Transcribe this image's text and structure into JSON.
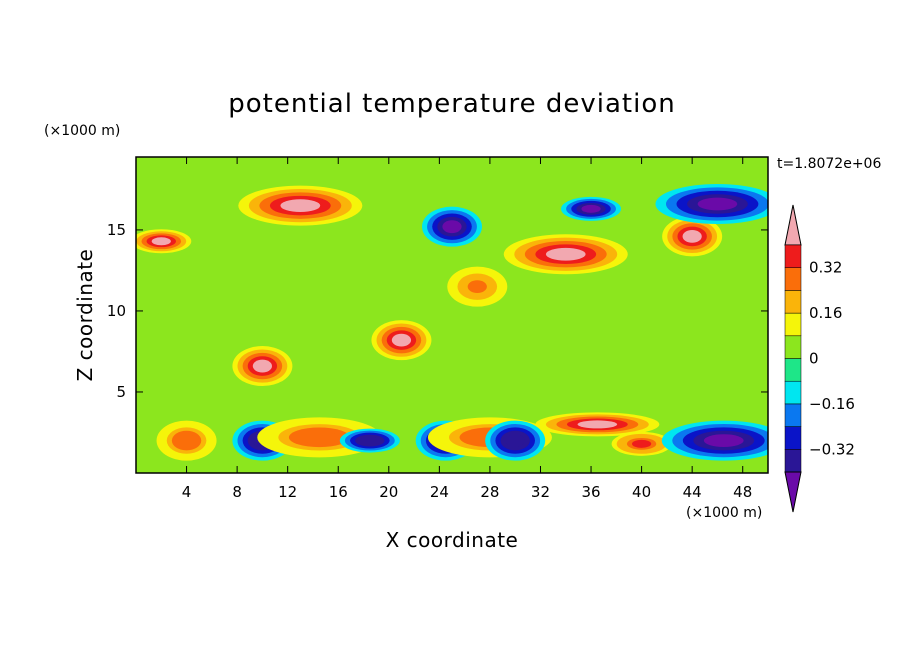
{
  "chart_data": {
    "type": "heatmap",
    "title": "potential temperature deviation",
    "xlabel": "X coordinate",
    "ylabel": "Z coordinate",
    "x_unit": "(×1000 m)",
    "z_unit": "(×1000 m)",
    "time_label": "t=1.8072e+06",
    "xlim": [
      0,
      50
    ],
    "zlim": [
      0,
      19.5
    ],
    "x_ticks": [
      4,
      8,
      12,
      16,
      20,
      24,
      28,
      32,
      36,
      40,
      44,
      48
    ],
    "z_ticks": [
      5,
      10,
      15
    ],
    "colorbar": {
      "levels": [
        -0.4,
        -0.32,
        -0.24,
        -0.16,
        -0.08,
        0,
        0.08,
        0.16,
        0.24,
        0.32,
        0.4
      ],
      "labels": [
        "0.32",
        "0.16",
        "0",
        "−0.16",
        "−0.32"
      ],
      "label_values": [
        0.32,
        0.16,
        0,
        -0.16,
        -0.32
      ],
      "colors": [
        "#6a0aa8",
        "#2a1696",
        "#0a14c8",
        "#0a78f0",
        "#00e6f0",
        "#1ee688",
        "#8ce61e",
        "#f5f50a",
        "#fab40a",
        "#fa6e0a",
        "#ee1c1c",
        "#f2a8b0"
      ],
      "extend": "both"
    },
    "features": [
      {
        "x": 13,
        "z": 16.5,
        "value": 0.45
      },
      {
        "x": 2,
        "z": 14.3,
        "value": 0.45
      },
      {
        "x": 44,
        "z": 14.6,
        "value": 0.45
      },
      {
        "x": 34,
        "z": 13.5,
        "value": 0.45
      },
      {
        "x": 25,
        "z": 15.2,
        "value": -0.45
      },
      {
        "x": 36,
        "z": 16.3,
        "value": -0.45
      },
      {
        "x": 46,
        "z": 16.6,
        "value": -0.45
      },
      {
        "x": 21,
        "z": 8.2,
        "value": 0.45
      },
      {
        "x": 10,
        "z": 6.6,
        "value": 0.45
      },
      {
        "x": 36.5,
        "z": 3.0,
        "value": 0.45
      },
      {
        "x": 4,
        "z": 2.0,
        "value": 0.3
      },
      {
        "x": 10,
        "z": 2.0,
        "value": -0.4
      },
      {
        "x": 14.5,
        "z": 2.2,
        "value": 0.3
      },
      {
        "x": 18.5,
        "z": 2.0,
        "value": -0.4
      },
      {
        "x": 24.5,
        "z": 2.0,
        "value": -0.45
      },
      {
        "x": 28,
        "z": 2.2,
        "value": 0.3
      },
      {
        "x": 30,
        "z": 2.0,
        "value": -0.4
      },
      {
        "x": 40,
        "z": 1.8,
        "value": 0.35
      },
      {
        "x": 46.5,
        "z": 2.0,
        "value": -0.45
      },
      {
        "x": 27,
        "z": 11.5,
        "value": 0.25
      }
    ]
  }
}
